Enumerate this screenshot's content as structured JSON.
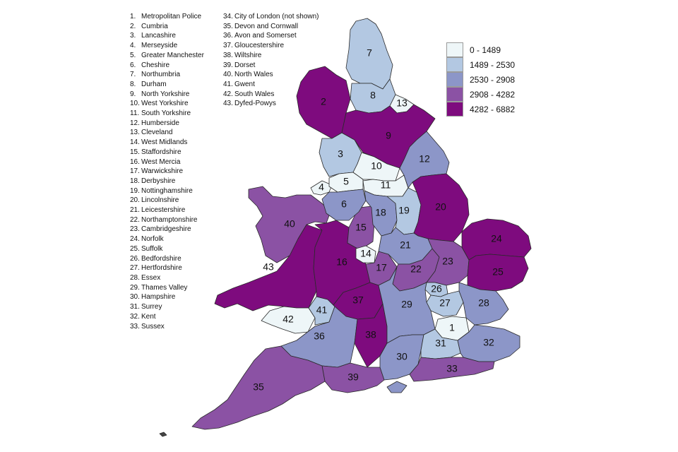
{
  "key": {
    "column1": [
      {
        "number": "1.",
        "name": "Metropolitan Police"
      },
      {
        "number": "2.",
        "name": "Cumbria"
      },
      {
        "number": "3.",
        "name": "Lancashire"
      },
      {
        "number": "4.",
        "name": "Merseyside"
      },
      {
        "number": "5.",
        "name": "Greater Manchester"
      },
      {
        "number": "6.",
        "name": "Cheshire"
      },
      {
        "number": "7.",
        "name": "Northumbria"
      },
      {
        "number": "8.",
        "name": "Durham"
      },
      {
        "number": "9.",
        "name": "North Yorkshire"
      },
      {
        "number": "10.",
        "name": "West Yorkshire"
      },
      {
        "number": "11.",
        "name": "South Yorkshire"
      },
      {
        "number": "12.",
        "name": "Humberside"
      },
      {
        "number": "13.",
        "name": "Cleveland"
      },
      {
        "number": "14.",
        "name": "West Midlands"
      },
      {
        "number": "15.",
        "name": "Staffordshire"
      },
      {
        "number": "16.",
        "name": "West Mercia"
      },
      {
        "number": "17.",
        "name": "Warwickshire"
      },
      {
        "number": "18.",
        "name": "Derbyshire"
      },
      {
        "number": "19.",
        "name": "Nottinghamshire"
      },
      {
        "number": "20.",
        "name": "Lincolnshire"
      },
      {
        "number": "21.",
        "name": "Leicestershire"
      },
      {
        "number": "22.",
        "name": "Northamptonshire"
      },
      {
        "number": "23.",
        "name": "Cambridgeshire"
      },
      {
        "number": "24.",
        "name": "Norfolk"
      },
      {
        "number": "25.",
        "name": "Suffolk"
      },
      {
        "number": "26.",
        "name": "Bedfordshire"
      },
      {
        "number": "27.",
        "name": "Hertfordshire"
      },
      {
        "number": "28.",
        "name": "Essex"
      },
      {
        "number": "29.",
        "name": "Thames Valley"
      },
      {
        "number": "30.",
        "name": "Hampshire"
      },
      {
        "number": "31.",
        "name": "Surrey"
      },
      {
        "number": "32.",
        "name": "Kent"
      },
      {
        "number": "33.",
        "name": "Sussex"
      }
    ],
    "column2": [
      {
        "number": "34.",
        "name": "City of London  (not shown)"
      },
      {
        "number": "35.",
        "name": "Devon and Cornwall"
      },
      {
        "number": "36.",
        "name": "Avon and Somerset"
      },
      {
        "number": "37.",
        "name": "Gloucestershire"
      },
      {
        "number": "38.",
        "name": "Wiltshire"
      },
      {
        "number": "39.",
        "name": "Dorset"
      },
      {
        "number": "40.",
        "name": "North Wales"
      },
      {
        "number": "41.",
        "name": "Gwent"
      },
      {
        "number": "42.",
        "name": "South Wales"
      },
      {
        "number": "43.",
        "name": "Dyfed-Powys"
      }
    ]
  },
  "legend": [
    {
      "range": "0 - 1489",
      "color": "#eef6f8"
    },
    {
      "range": "1489 - 2530",
      "color": "#b3c8e2"
    },
    {
      "range": "2530 - 2908",
      "color": "#8c96c8"
    },
    {
      "range": "2908 - 4282",
      "color": "#8b52a4"
    },
    {
      "range": "4282 - 6882",
      "color": "#7e0b7e"
    }
  ],
  "areas": [
    {
      "label": "1",
      "band": 0
    },
    {
      "label": "2",
      "band": 4
    },
    {
      "label": "3",
      "band": 1
    },
    {
      "label": "4",
      "band": 0
    },
    {
      "label": "5",
      "band": 0
    },
    {
      "label": "6",
      "band": 2
    },
    {
      "label": "7",
      "band": 1
    },
    {
      "label": "8",
      "band": 1
    },
    {
      "label": "9",
      "band": 4
    },
    {
      "label": "10",
      "band": 0
    },
    {
      "label": "11",
      "band": 0
    },
    {
      "label": "12",
      "band": 2
    },
    {
      "label": "13",
      "band": 0
    },
    {
      "label": "14",
      "band": 0
    },
    {
      "label": "15",
      "band": 3
    },
    {
      "label": "16",
      "band": 4
    },
    {
      "label": "17",
      "band": 3
    },
    {
      "label": "18",
      "band": 2
    },
    {
      "label": "19",
      "band": 1
    },
    {
      "label": "20",
      "band": 4
    },
    {
      "label": "21",
      "band": 2
    },
    {
      "label": "22",
      "band": 3
    },
    {
      "label": "23",
      "band": 3
    },
    {
      "label": "24",
      "band": 4
    },
    {
      "label": "25",
      "band": 4
    },
    {
      "label": "26",
      "band": 1
    },
    {
      "label": "27",
      "band": 1
    },
    {
      "label": "28",
      "band": 2
    },
    {
      "label": "29",
      "band": 2
    },
    {
      "label": "30",
      "band": 2
    },
    {
      "label": "31",
      "band": 1
    },
    {
      "label": "32",
      "band": 2
    },
    {
      "label": "33",
      "band": 3
    },
    {
      "label": "35",
      "band": 3
    },
    {
      "label": "36",
      "band": 2
    },
    {
      "label": "37",
      "band": 4
    },
    {
      "label": "38",
      "band": 4
    },
    {
      "label": "39",
      "band": 3
    },
    {
      "label": "40",
      "band": 3
    },
    {
      "label": "41",
      "band": 1
    },
    {
      "label": "42",
      "band": 0
    },
    {
      "label": "43",
      "band": 4
    }
  ]
}
